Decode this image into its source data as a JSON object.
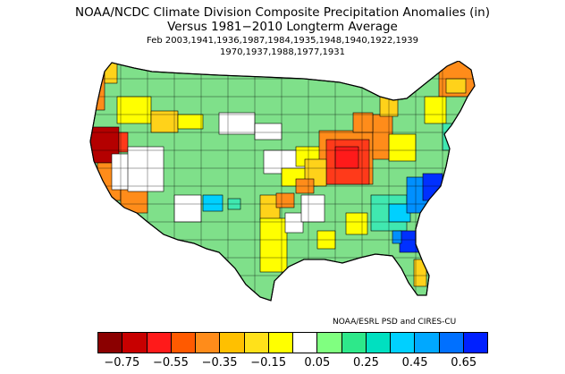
{
  "header": {
    "title": "NOAA/NCDC Climate Division Composite Precipitation Anomalies (in)",
    "subtitle": "Versus 1981−2010 Longterm Average",
    "years_line1": "Feb   2003,1941,1936,1987,1984,1935,1948,1940,1922,1939",
    "years_line2": "1970,1937,1988,1977,1931"
  },
  "credit": "NOAA/ESRL PSD and CIRES-CU",
  "colorbar": {
    "colors": [
      "#8b0000",
      "#c80000",
      "#ff1a1a",
      "#ff5a00",
      "#ff8c1a",
      "#ffc000",
      "#ffe11a",
      "#ffff00",
      "#ffffff",
      "#80ff80",
      "#2ee88a",
      "#00e0c0",
      "#00d0ff",
      "#00a8ff",
      "#0070ff",
      "#0020ff"
    ],
    "labels": [
      "−0.75",
      "−0.55",
      "−0.35",
      "−0.15",
      "0.05",
      "0.25",
      "0.45",
      "0.65"
    ]
  },
  "map": {
    "description_colors": {
      "land_default": "#7fe08a",
      "dry_strong": "#b40000",
      "dry": "#ff3a1a",
      "dry_mod": "#ff8c1a",
      "dry_light": "#ffd21a",
      "dry_slight": "#ffff00",
      "neutral": "#ffffff",
      "wet_light": "#40e8b0",
      "wet": "#00d0ff",
      "wet_mod": "#0090ff",
      "wet_strong": "#0030ff"
    }
  }
}
